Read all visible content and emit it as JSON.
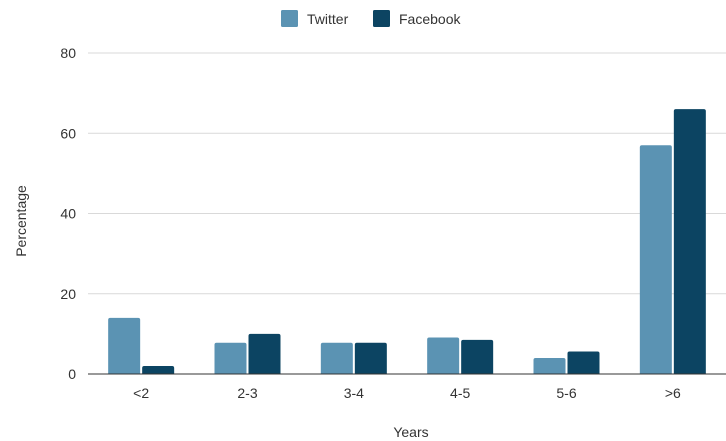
{
  "chart_data": {
    "type": "bar",
    "categories": [
      "<2",
      "2-3",
      "3-4",
      "4-5",
      "5-6",
      ">6"
    ],
    "series": [
      {
        "name": "Twitter",
        "color": "#5b93b3",
        "values": [
          14,
          7.8,
          7.8,
          9.1,
          4,
          57
        ]
      },
      {
        "name": "Facebook",
        "color": "#0c4462",
        "values": [
          2,
          10,
          7.8,
          8.5,
          5.6,
          66
        ]
      }
    ],
    "xlabel": "Years",
    "ylabel": "Percentage",
    "ylim": [
      0,
      80
    ],
    "yticks": [
      0,
      20,
      40,
      60,
      80
    ],
    "grid": true,
    "legend_position": "top-center"
  }
}
